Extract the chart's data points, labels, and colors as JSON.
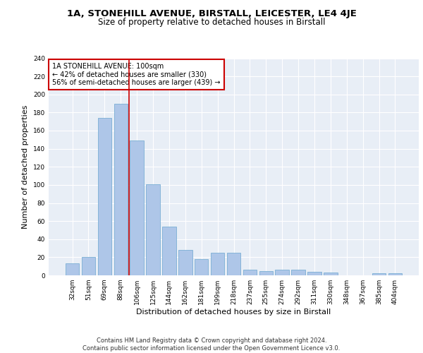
{
  "title_line1": "1A, STONEHILL AVENUE, BIRSTALL, LEICESTER, LE4 4JE",
  "title_line2": "Size of property relative to detached houses in Birstall",
  "xlabel": "Distribution of detached houses by size in Birstall",
  "ylabel": "Number of detached properties",
  "categories": [
    "32sqm",
    "51sqm",
    "69sqm",
    "88sqm",
    "106sqm",
    "125sqm",
    "144sqm",
    "162sqm",
    "181sqm",
    "199sqm",
    "218sqm",
    "237sqm",
    "255sqm",
    "274sqm",
    "292sqm",
    "311sqm",
    "330sqm",
    "348sqm",
    "367sqm",
    "385sqm",
    "404sqm"
  ],
  "values": [
    13,
    20,
    174,
    190,
    149,
    101,
    54,
    28,
    18,
    25,
    25,
    6,
    5,
    6,
    6,
    4,
    3,
    0,
    0,
    2,
    2
  ],
  "bar_color": "#aec6e8",
  "bar_edge_color": "#7aafd4",
  "bg_color": "#e8eef6",
  "grid_color": "#ffffff",
  "annotation_text": "1A STONEHILL AVENUE: 100sqm\n← 42% of detached houses are smaller (330)\n56% of semi-detached houses are larger (439) →",
  "annotation_box_color": "#ffffff",
  "annotation_box_edge": "#cc0000",
  "vline_color": "#cc0000",
  "ylim": [
    0,
    240
  ],
  "yticks": [
    0,
    20,
    40,
    60,
    80,
    100,
    120,
    140,
    160,
    180,
    200,
    220,
    240
  ],
  "footer": "Contains HM Land Registry data © Crown copyright and database right 2024.\nContains public sector information licensed under the Open Government Licence v3.0.",
  "title_fontsize": 9.5,
  "subtitle_fontsize": 8.5,
  "tick_fontsize": 6.5,
  "ylabel_fontsize": 8,
  "xlabel_fontsize": 8,
  "annotation_fontsize": 7,
  "footer_fontsize": 6
}
